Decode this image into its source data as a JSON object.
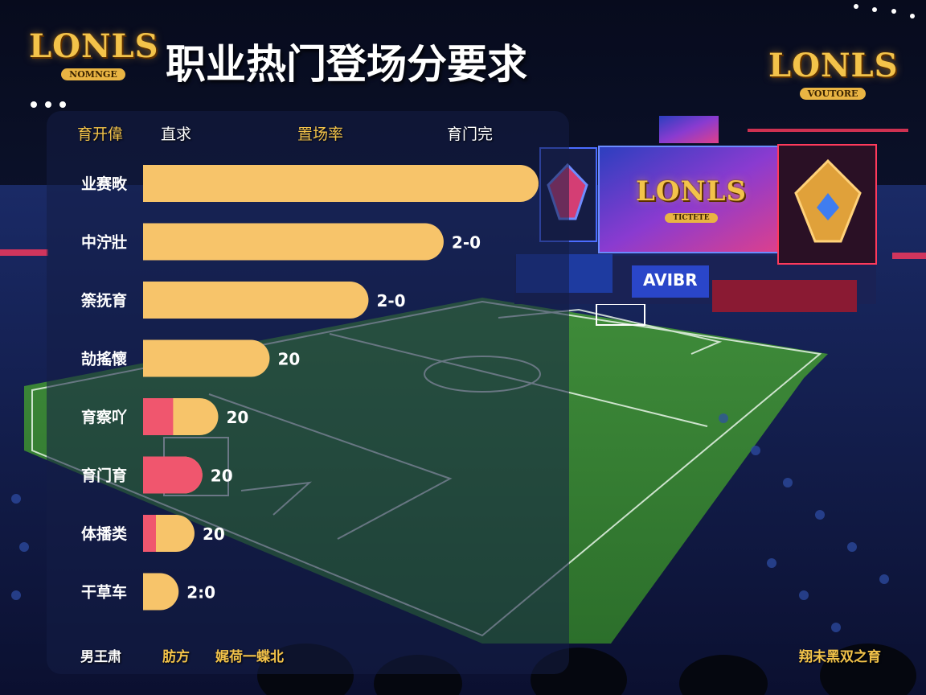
{
  "page": {
    "title": "职业热门登场分要求",
    "logo_word": "LONLS",
    "logo_left_sub": "NOMNGE",
    "logo_right_sub": "VOUTORE",
    "screen_logo_sub": "TICTETE",
    "screen_sign_text": "AVIBR"
  },
  "table_headers": [
    "育开偉",
    "直求",
    "置场率",
    "育门完"
  ],
  "footer": {
    "left": "男王肃",
    "mid_a": "肪方",
    "mid_b": "娓荷一蝶北",
    "right": "翔未黑双之育"
  },
  "colors": {
    "bar_gold": "#f7c46a",
    "bar_pink": "#f0566e",
    "title": "#ffffff",
    "accent_gold": "#f3c34a"
  },
  "chart_data": {
    "type": "bar",
    "orientation": "horizontal",
    "categories": [
      "业赛畋",
      "中泞壯",
      "筡抚育",
      "劼搖懷",
      "育察吖",
      "育门育",
      "体播类",
      "干草车"
    ],
    "values": [
      100,
      76,
      57,
      32,
      19,
      15,
      13,
      9
    ],
    "value_labels": [
      "",
      "2-0",
      "2-0",
      "20",
      "20",
      "20",
      "20",
      "2:0"
    ],
    "pink_fraction": [
      0,
      0,
      0,
      0,
      0.4,
      1,
      0.25,
      0
    ],
    "title": "职业热门登场分要求",
    "xlim": [
      0,
      100
    ],
    "grid": false,
    "legend": "none"
  }
}
